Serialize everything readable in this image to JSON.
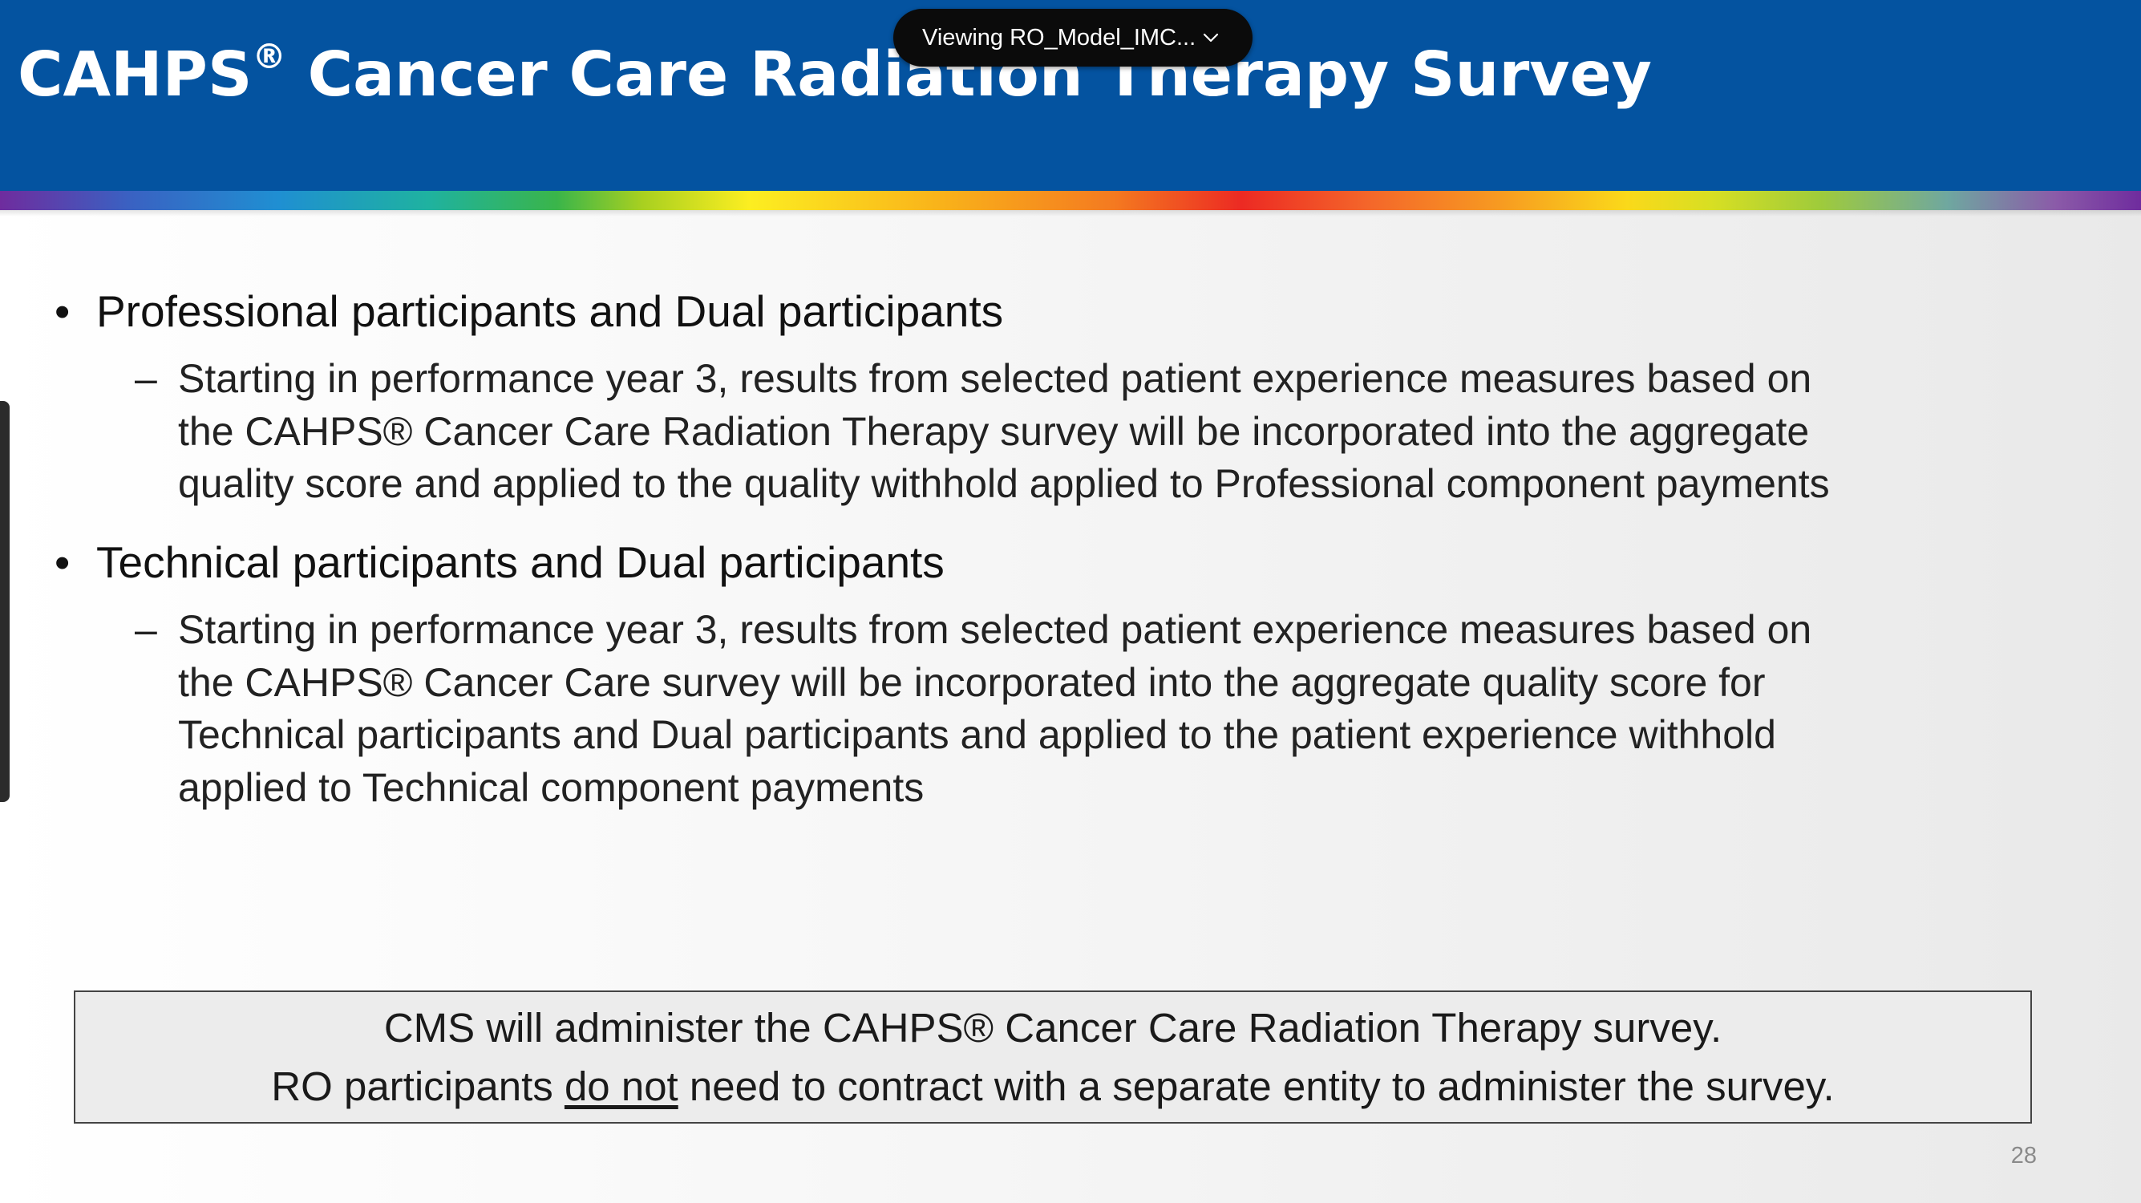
{
  "header": {
    "title_main": "CAHPS",
    "title_reg": "®",
    "title_rest": " Cancer Care Radiation Therapy Survey"
  },
  "viewing_pill": {
    "label": "Viewing RO_Model_IMC...",
    "icon": "chevron-down-icon"
  },
  "bullets": [
    {
      "heading": "Professional participants and Dual participants",
      "sub_items": [
        {
          "dash": "–",
          "lines": [
            "Starting in performance year 3, results from selected patient experience measures based on",
            "the CAHPS® Cancer Care Radiation Therapy survey will be incorporated into the aggregate",
            "quality score and applied to the quality withhold applied to Professional component payments"
          ]
        }
      ]
    },
    {
      "heading": "Technical participants and Dual participants",
      "sub_items": [
        {
          "dash": "–",
          "lines": [
            "Starting in performance year 3, results from selected patient experience measures based on",
            "the CAHPS® Cancer Care survey will be incorporated into the aggregate quality score for",
            "Technical participants and Dual participants and applied to the patient experience withhold",
            "applied to Technical component payments"
          ]
        }
      ]
    }
  ],
  "callout": {
    "line1": "CMS will administer the CAHPS® Cancer Care Radiation Therapy survey.",
    "line2_before": "RO participants ",
    "line2_underlined": "do not",
    "line2_after": " need to contract with a separate entity to administer the survey."
  },
  "slide_number": "28",
  "bullet_glyph": "•",
  "colors": {
    "header_bg": "#0453a0",
    "pill_bg": "#0b0b0b"
  }
}
